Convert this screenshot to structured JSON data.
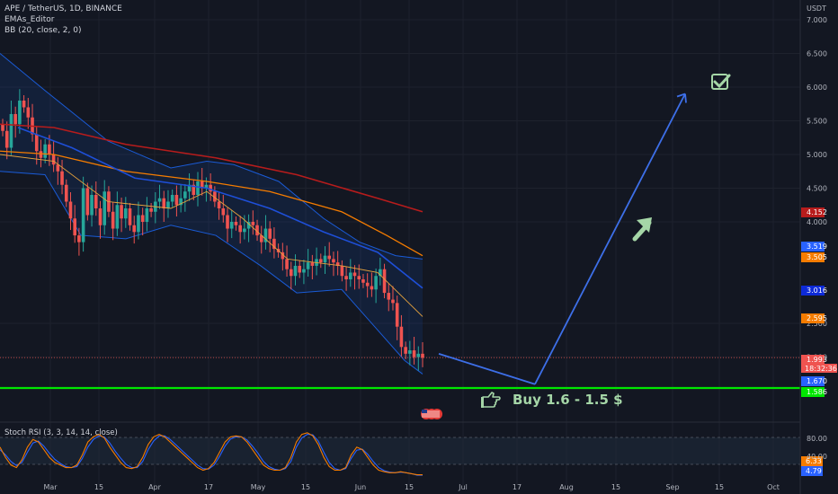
{
  "header": {
    "symbol_line": "APE / TetherUS, 1D, BINANCE",
    "indicator_ema": "EMAs_Editor",
    "indicator_bb": "BB (20, close, 2, 0)",
    "currency": "USDT"
  },
  "rsi": {
    "label": "Stoch RSI (3, 3, 14, 14, close)",
    "ticks": [
      "80.00",
      "40.00"
    ],
    "badge_k": "6.33",
    "badge_d": "4.79"
  },
  "annotation": {
    "buy_text": "Buy 1.6 - 1.5 $"
  },
  "colors": {
    "background": "#131722",
    "grid": "#1e222d",
    "candle_up": "#26a69a",
    "candle_down": "#ef5350",
    "ema_red": "#b71c1c",
    "ema_orange": "#f57c00",
    "ema_blue": "#1e4fd8",
    "bb_band": "#1a5bd6",
    "support": "#00e600",
    "arrow": "#3d6fe8",
    "signal_green": "#a5d6a7"
  },
  "chart_data": {
    "type": "candlestick",
    "x_ticks": [
      "Mar",
      "15",
      "Apr",
      "17",
      "May",
      "15",
      "Jun",
      "15",
      "Jul",
      "17",
      "Aug",
      "15",
      "Sep",
      "15",
      "Oct"
    ],
    "y_ticks": [
      "7.000",
      "6.500",
      "6.000",
      "5.500",
      "5.000",
      "4.500",
      "4.000",
      "2.500",
      "2.000"
    ],
    "ylim": [
      1.3,
      7.2
    ],
    "price_labels": [
      {
        "label": "4.152",
        "value": 4.152,
        "color": "#b71c1c"
      },
      {
        "label": "3.519",
        "value": 3.519,
        "color": "#2962ff"
      },
      {
        "label": "3.505",
        "value": 3.505,
        "color": "#f57c00"
      },
      {
        "label": "3.016",
        "value": 3.016,
        "color": "#0d2ad8"
      },
      {
        "label": "2.595",
        "value": 2.595,
        "color": "#f57c00"
      },
      {
        "label": "1.993",
        "value": 1.993,
        "color": "#ef5350"
      },
      {
        "label": "1.670",
        "value": 1.67,
        "color": "#2962ff"
      },
      {
        "label": "1.586",
        "value": 1.586,
        "color": "#00e600"
      }
    ],
    "countdown": "18:32:36",
    "closes": [
      5.35,
      5.1,
      5.6,
      5.45,
      5.8,
      5.7,
      5.55,
      5.3,
      5.05,
      4.95,
      5.15,
      5.0,
      4.85,
      4.75,
      4.55,
      4.3,
      4.05,
      3.8,
      3.7,
      4.5,
      4.1,
      4.4,
      4.2,
      3.95,
      4.45,
      4.15,
      3.9,
      4.25,
      4.05,
      4.2,
      3.95,
      3.85,
      4.1,
      4.0,
      4.2,
      4.15,
      4.3,
      4.35,
      4.2,
      4.3,
      4.4,
      4.25,
      4.35,
      4.45,
      4.55,
      4.4,
      4.6,
      4.5,
      4.55,
      4.45,
      4.3,
      4.2,
      4.1,
      3.9,
      4.0,
      3.95,
      3.85,
      3.9,
      4.0,
      3.95,
      3.8,
      3.7,
      3.9,
      3.75,
      3.6,
      3.55,
      3.45,
      3.3,
      3.2,
      3.35,
      3.25,
      3.3,
      3.4,
      3.35,
      3.45,
      3.4,
      3.5,
      3.45,
      3.4,
      3.35,
      3.2,
      3.15,
      3.25,
      3.2,
      3.15,
      3.1,
      3.05,
      3.0,
      3.2,
      3.3,
      2.95,
      2.85,
      2.8,
      2.45,
      2.15,
      2.05,
      2.1,
      2.0,
      2.05,
      1.99
    ],
    "ema_red": [
      [
        0,
        5.45
      ],
      [
        60,
        5.4
      ],
      [
        140,
        5.15
      ],
      [
        240,
        4.95
      ],
      [
        330,
        4.7
      ],
      [
        420,
        4.35
      ],
      [
        470,
        4.15
      ]
    ],
    "ema_orange": [
      [
        0,
        5.05
      ],
      [
        60,
        5.0
      ],
      [
        140,
        4.75
      ],
      [
        230,
        4.6
      ],
      [
        300,
        4.45
      ],
      [
        380,
        4.15
      ],
      [
        430,
        3.8
      ],
      [
        470,
        3.5
      ]
    ],
    "ema_blue": [
      [
        20,
        5.4
      ],
      [
        80,
        5.1
      ],
      [
        150,
        4.65
      ],
      [
        230,
        4.5
      ],
      [
        300,
        4.2
      ],
      [
        360,
        3.85
      ],
      [
        420,
        3.55
      ],
      [
        470,
        3.02
      ]
    ],
    "ema_thin": [
      [
        0,
        5.0
      ],
      [
        60,
        4.9
      ],
      [
        120,
        4.3
      ],
      [
        190,
        4.2
      ],
      [
        230,
        4.45
      ],
      [
        270,
        4.05
      ],
      [
        320,
        3.45
      ],
      [
        380,
        3.35
      ],
      [
        420,
        3.25
      ],
      [
        470,
        2.6
      ]
    ],
    "bb_upper": [
      [
        0,
        6.5
      ],
      [
        50,
        5.95
      ],
      [
        120,
        5.2
      ],
      [
        190,
        4.8
      ],
      [
        230,
        4.9
      ],
      [
        260,
        4.85
      ],
      [
        310,
        4.6
      ],
      [
        360,
        4.05
      ],
      [
        400,
        3.7
      ],
      [
        440,
        3.5
      ],
      [
        470,
        3.45
      ]
    ],
    "bb_lower": [
      [
        0,
        4.75
      ],
      [
        50,
        4.7
      ],
      [
        90,
        3.8
      ],
      [
        140,
        3.75
      ],
      [
        190,
        3.95
      ],
      [
        240,
        3.8
      ],
      [
        290,
        3.35
      ],
      [
        330,
        2.95
      ],
      [
        380,
        3.0
      ],
      [
        420,
        2.4
      ],
      [
        450,
        1.95
      ],
      [
        470,
        1.75
      ]
    ],
    "support_level": 1.586,
    "current_price": 1.993,
    "projection": {
      "down": [
        [
          488,
          2.05
        ],
        [
          595,
          1.6
        ]
      ],
      "up": [
        [
          595,
          1.6
        ],
        [
          762,
          5.9
        ]
      ]
    },
    "stoch_rsi_k": [
      60,
      40,
      25,
      20,
      35,
      60,
      75,
      70,
      55,
      40,
      30,
      25,
      20,
      20,
      25,
      45,
      70,
      80,
      85,
      78,
      60,
      45,
      30,
      20,
      18,
      22,
      40,
      65,
      80,
      85,
      80,
      70,
      60,
      50,
      40,
      30,
      20,
      15,
      18,
      30,
      50,
      70,
      80,
      82,
      80,
      70,
      55,
      40,
      25,
      18,
      15,
      15,
      20,
      40,
      70,
      85,
      88,
      82,
      65,
      40,
      22,
      15,
      15,
      20,
      45,
      60,
      55,
      40,
      25,
      15,
      12,
      10,
      10,
      12,
      10,
      8,
      6,
      6
    ],
    "stoch_rsi_d": [
      55,
      45,
      32,
      24,
      30,
      50,
      68,
      72,
      62,
      48,
      36,
      28,
      22,
      20,
      22,
      38,
      60,
      75,
      82,
      80,
      68,
      52,
      38,
      26,
      20,
      20,
      32,
      55,
      72,
      82,
      82,
      75,
      65,
      55,
      45,
      35,
      25,
      18,
      17,
      25,
      42,
      62,
      76,
      80,
      80,
      74,
      62,
      48,
      32,
      22,
      17,
      15,
      18,
      32,
      60,
      78,
      85,
      84,
      72,
      50,
      30,
      18,
      15,
      18,
      38,
      54,
      56,
      46,
      32,
      20,
      14,
      11,
      10,
      11,
      10,
      8,
      5,
      5
    ]
  }
}
